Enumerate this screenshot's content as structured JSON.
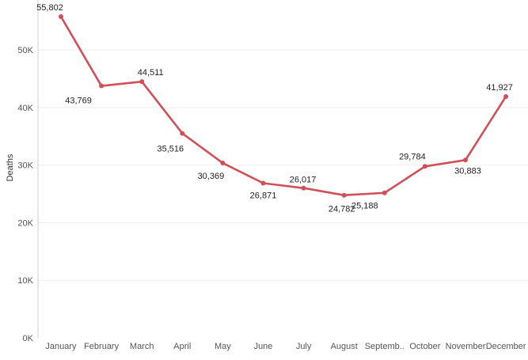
{
  "chart_data": {
    "type": "line",
    "title": "",
    "xlabel": "",
    "ylabel": "Deaths",
    "ylim": [
      0,
      55802
    ],
    "yticks": [
      0,
      10000,
      20000,
      30000,
      40000,
      50000
    ],
    "ytick_labels": [
      "0K",
      "10K",
      "20K",
      "30K",
      "40K",
      "50K"
    ],
    "grid": "horizontal",
    "categories": [
      "January",
      "February",
      "March",
      "April",
      "May",
      "June",
      "July",
      "August",
      "Septemb..",
      "October",
      "November",
      "December"
    ],
    "series": [
      {
        "values": [
          55802,
          43769,
          44511,
          35516,
          30369,
          26871,
          26017,
          24782,
          25188,
          29784,
          30883,
          41927
        ],
        "labels": [
          "55,802",
          "43,769",
          "44,511",
          "35,516",
          "30,369",
          "26,871",
          "26,017",
          "24,782",
          "25,188",
          "29,784",
          "30,883",
          "41,927"
        ],
        "color": "#d0505a"
      }
    ]
  }
}
